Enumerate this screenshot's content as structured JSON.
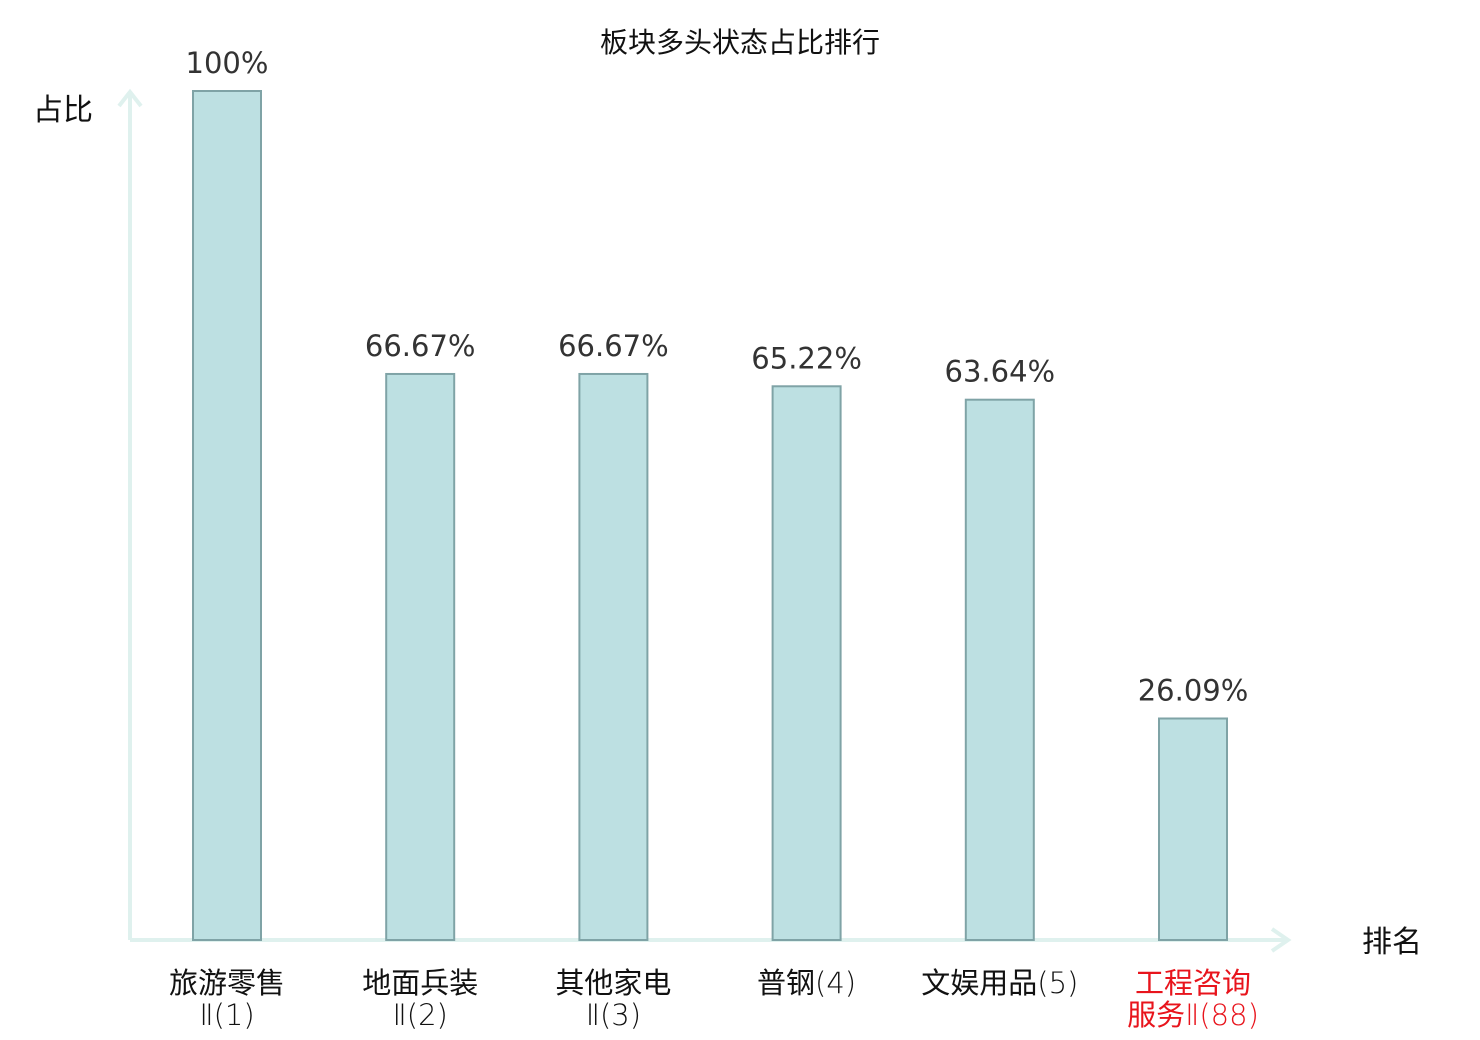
{
  "chart_data": {
    "type": "bar",
    "title": "板块多头状态占比排行",
    "ylabel": "占比",
    "xlabel": "排名",
    "ylim": [
      0,
      100
    ],
    "grid": false,
    "categories": [
      {
        "lines": [
          {
            "name": "旅游零售",
            "suffix": ""
          },
          {
            "name": "",
            "suffix": "Ⅱ(1)"
          }
        ],
        "highlight": false
      },
      {
        "lines": [
          {
            "name": "地面兵装",
            "suffix": ""
          },
          {
            "name": "",
            "suffix": "Ⅱ(2)"
          }
        ],
        "highlight": false
      },
      {
        "lines": [
          {
            "name": "其他家电",
            "suffix": ""
          },
          {
            "name": "",
            "suffix": "Ⅱ(3)"
          }
        ],
        "highlight": false
      },
      {
        "lines": [
          {
            "name": "普钢",
            "suffix": "(4)"
          }
        ],
        "highlight": false
      },
      {
        "lines": [
          {
            "name": "文娱用品",
            "suffix": "(5)"
          }
        ],
        "highlight": false
      },
      {
        "lines": [
          {
            "name": "工程咨询",
            "suffix": ""
          },
          {
            "name": "服务",
            "suffix": "Ⅱ(88)"
          }
        ],
        "highlight": true
      }
    ],
    "values": [
      100,
      66.67,
      66.67,
      65.22,
      63.64,
      26.09
    ],
    "value_labels": [
      "100%",
      "66.67%",
      "66.67%",
      "65.22%",
      "63.64%",
      "26.09%"
    ],
    "colors": {
      "bar_fill": "#bde0e2",
      "bar_stroke": "#7fa3a6",
      "axis": "#dff1ee",
      "label_normal": "#111111",
      "label_highlight": "#e8141c"
    }
  }
}
